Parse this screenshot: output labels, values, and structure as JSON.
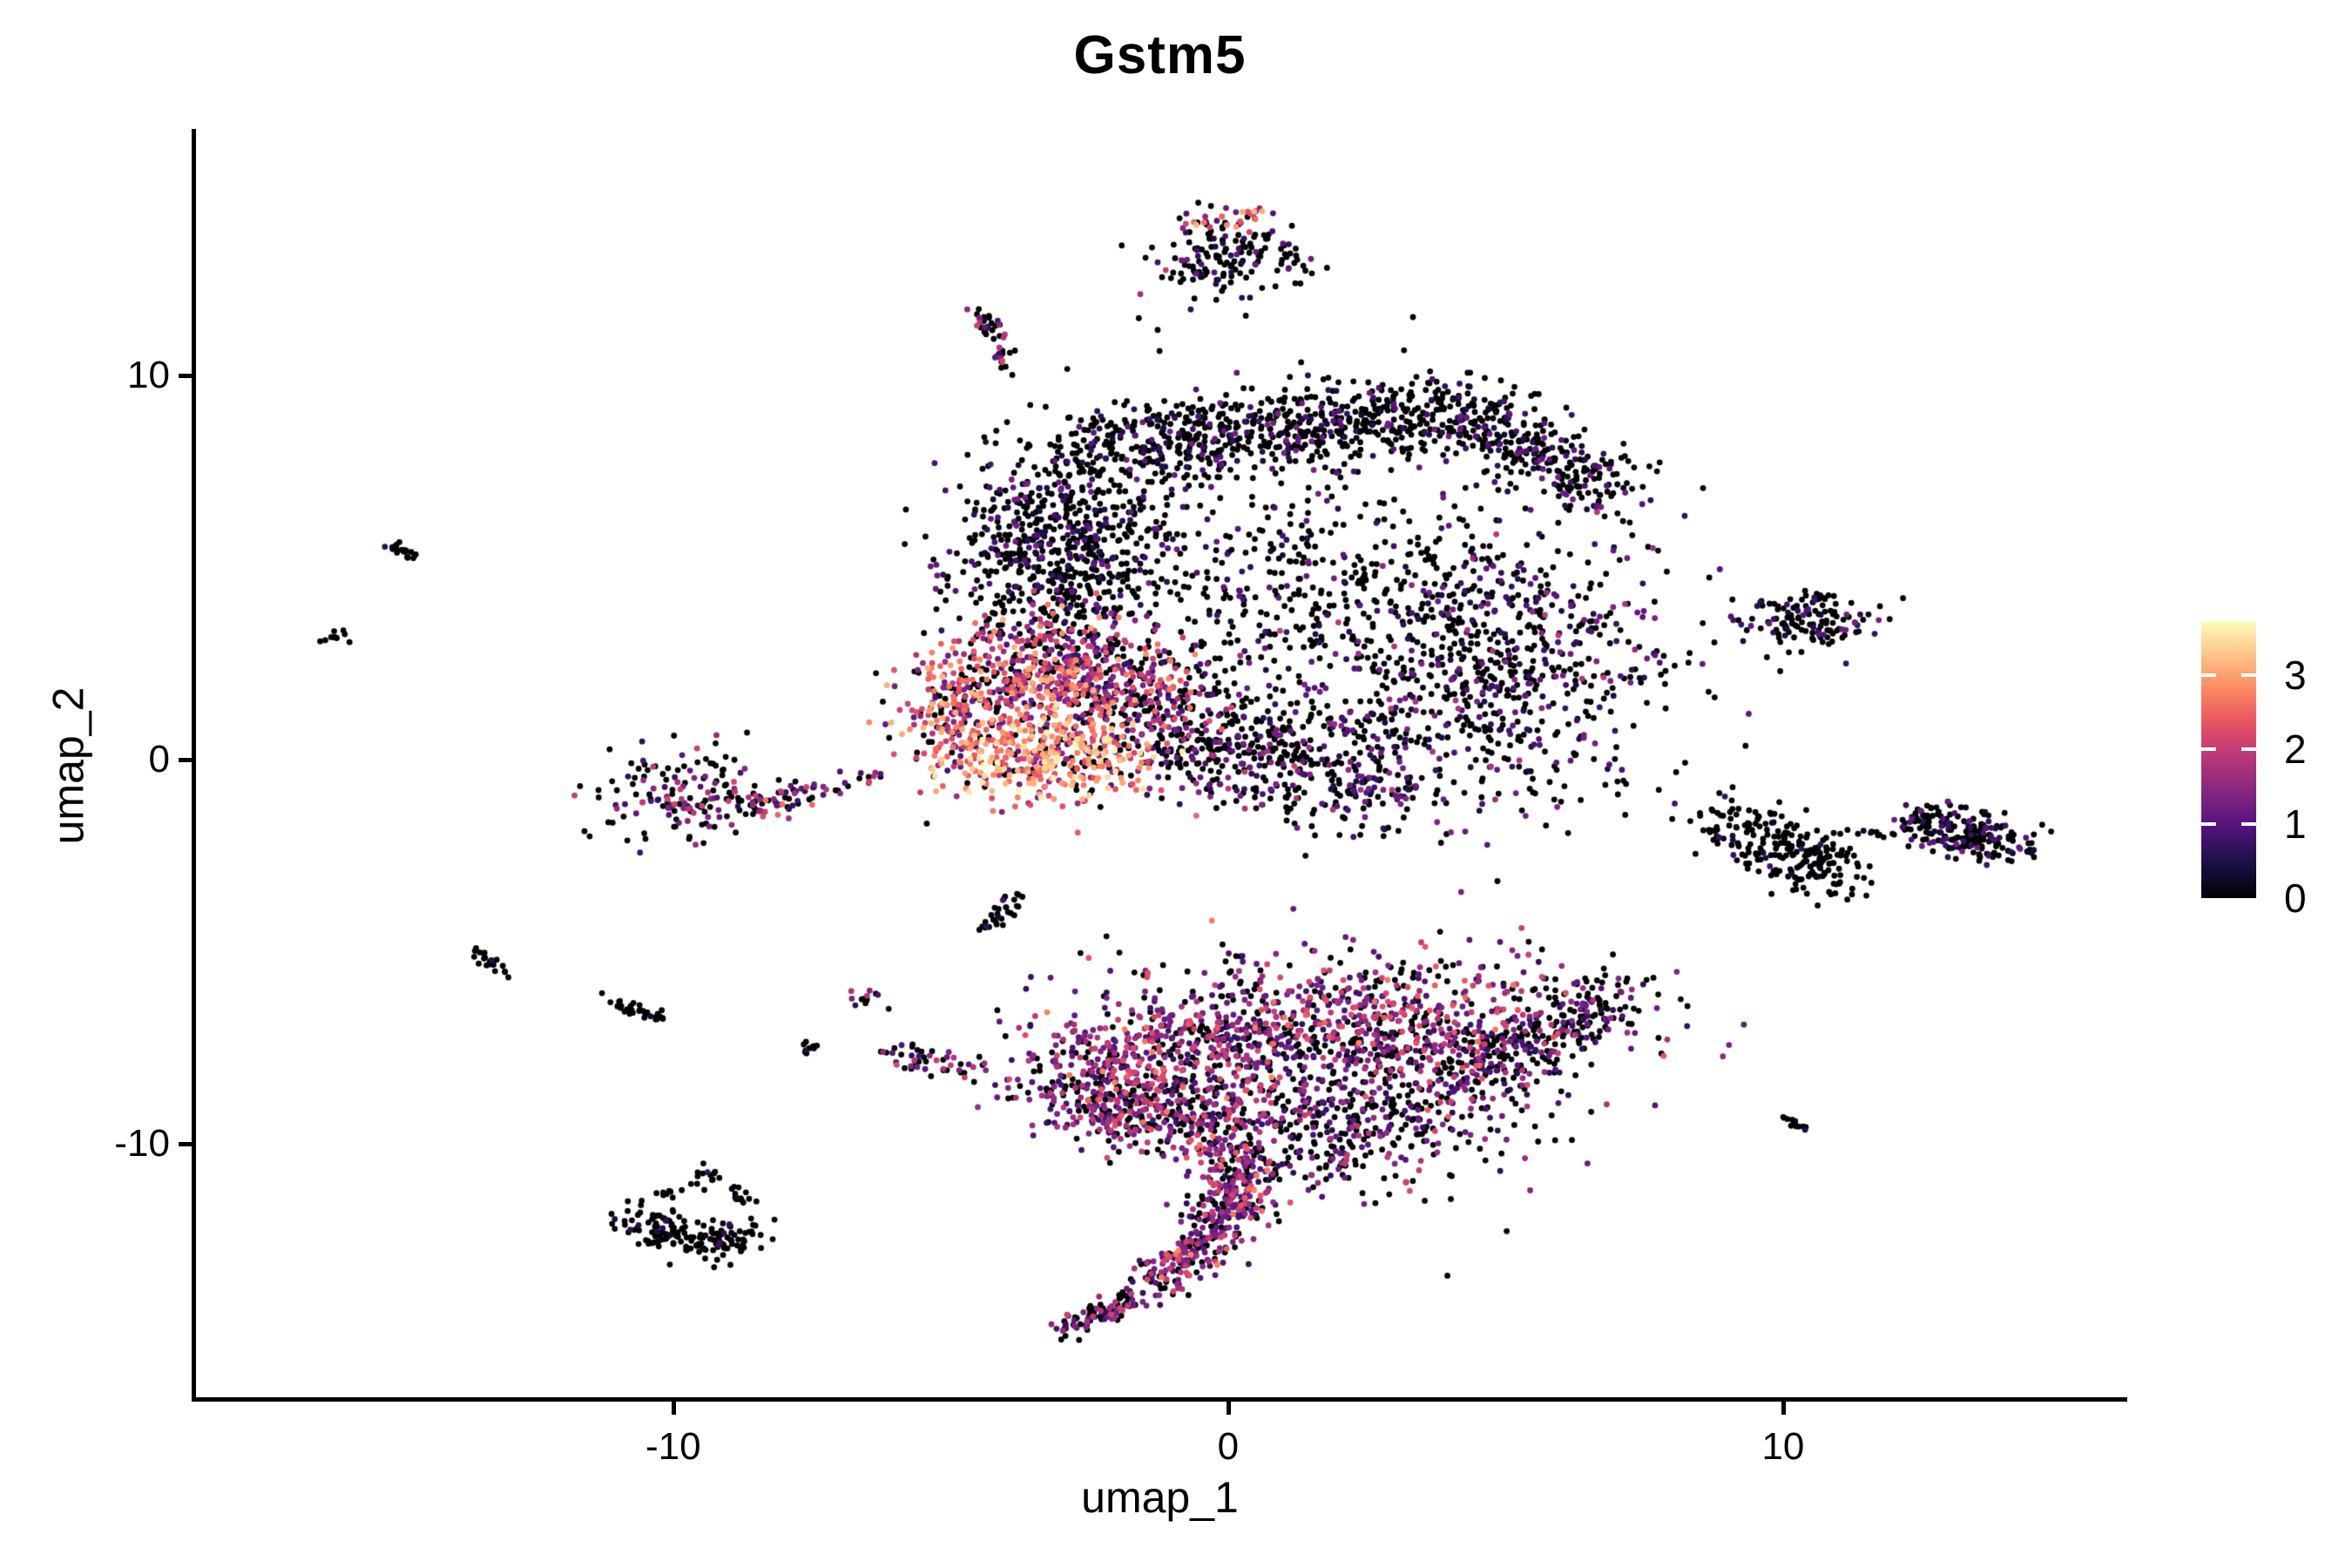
{
  "title": "Gstm5",
  "x_axis": {
    "label": "umap_1",
    "tick_labels": [
      "-10",
      "0",
      "10"
    ],
    "tick_values": [
      -10,
      0,
      10
    ]
  },
  "y_axis": {
    "label": "umap_2",
    "tick_labels": [
      "-10",
      "0",
      "10"
    ],
    "tick_values": [
      -10,
      0,
      10
    ]
  },
  "colorbar": {
    "tick_labels": [
      "0",
      "1",
      "2",
      "3"
    ],
    "tick_values": [
      0,
      1,
      2,
      3
    ],
    "min": 0,
    "max": 3.72,
    "palette": "magma",
    "gradient_stops": [
      "#000004",
      "#1c1044",
      "#4f127b",
      "#812581",
      "#b5367a",
      "#e55064",
      "#fb8761",
      "#fec287",
      "#fcfdbf"
    ]
  },
  "chart_data": {
    "type": "scatter",
    "title": "Gstm5",
    "xlabel": "umap_1",
    "ylabel": "umap_2",
    "xlim": [
      -18.63,
      16.17
    ],
    "ylim": [
      -16.62,
      16.37
    ],
    "grid": false,
    "legend_position": "right",
    "color_scale": {
      "palette": "magma",
      "domain": [
        0,
        3.72
      ]
    },
    "n_points_approx": 8900,
    "point_radius_px": 3.4,
    "profiles": {
      "black": [
        [
          0.92,
          0,
          0
        ],
        [
          0.08,
          0.2,
          0.8
        ]
      ],
      "dark": [
        [
          0.78,
          0,
          0
        ],
        [
          0.22,
          0.3,
          1.3
        ]
      ],
      "dark2": [
        [
          0.68,
          0,
          0
        ],
        [
          0.27,
          0.4,
          1.4
        ],
        [
          0.05,
          1.4,
          2.0
        ]
      ],
      "darkpurple": [
        [
          0.55,
          0,
          0
        ],
        [
          0.35,
          0.5,
          1.6
        ],
        [
          0.1,
          1.6,
          2.2
        ]
      ],
      "purplemix": [
        [
          0.33,
          0,
          0
        ],
        [
          0.47,
          0.6,
          1.8
        ],
        [
          0.16,
          1.8,
          2.4
        ],
        [
          0.04,
          2.4,
          2.8
        ]
      ],
      "warmmix": [
        [
          0.22,
          0,
          0
        ],
        [
          0.33,
          0.8,
          1.9
        ],
        [
          0.3,
          1.9,
          2.7
        ],
        [
          0.15,
          2.7,
          3.2
        ]
      ],
      "hot": [
        [
          0.1,
          0,
          0
        ],
        [
          0.2,
          1.2,
          2.2
        ],
        [
          0.45,
          2.2,
          3.1
        ],
        [
          0.25,
          3.1,
          3.72
        ]
      ]
    },
    "clusters": [
      {
        "name": "top-cluster-core",
        "type": "gauss",
        "cx": 0.05,
        "cy": 13.1,
        "sx": 0.6,
        "sy": 0.5,
        "n": 150,
        "profile": "dark"
      },
      {
        "name": "top-cluster-rim",
        "type": "line",
        "x1": -0.9,
        "y1": 13.9,
        "x2": 0.5,
        "y2": 14.2,
        "jitter": 0.18,
        "n": 30,
        "profile": "warmmix"
      },
      {
        "name": "top-sparse",
        "type": "gauss",
        "cx": -1.5,
        "cy": 12.0,
        "sx": 0.8,
        "sy": 0.6,
        "n": 8,
        "profile": "darkpurple"
      },
      {
        "name": "upper-streak",
        "type": "line",
        "x1": -4.55,
        "y1": 11.7,
        "x2": -3.85,
        "y2": 10.2,
        "jitter": 0.13,
        "n": 45,
        "profile": "darkpurple"
      },
      {
        "name": "main-left-dense",
        "type": "gauss",
        "cx": -3.1,
        "cy": 5.5,
        "sx": 0.95,
        "sy": 1.35,
        "n": 650,
        "profile": "dark"
      },
      {
        "name": "main-top-band",
        "type": "line",
        "x1": -2.6,
        "y1": 8.0,
        "x2": 4.3,
        "y2": 9.1,
        "jitter": 0.55,
        "n": 720,
        "profile": "dark"
      },
      {
        "name": "main-top-band2",
        "type": "line",
        "x1": 4.3,
        "y1": 8.9,
        "x2": 6.95,
        "y2": 7.0,
        "jitter": 0.5,
        "n": 300,
        "profile": "dark"
      },
      {
        "name": "main-right-lobe",
        "type": "gauss",
        "cx": 4.7,
        "cy": 2.6,
        "sx": 1.6,
        "sy": 2.0,
        "n": 820,
        "profile": "dark2"
      },
      {
        "name": "main-mid-sparse",
        "type": "gauss",
        "cx": 0.8,
        "cy": 4.3,
        "sx": 1.7,
        "sy": 1.6,
        "n": 300,
        "profile": "dark"
      },
      {
        "name": "main-fill",
        "type": "gauss",
        "cx": 1.5,
        "cy": 6.2,
        "sx": 2.5,
        "sy": 2.2,
        "n": 100,
        "profile": "dark"
      },
      {
        "name": "main-bottom-arc",
        "type": "line",
        "x1": -1.9,
        "y1": 0.8,
        "x2": 2.9,
        "y2": -0.6,
        "jitter": 0.75,
        "n": 500,
        "profile": "dark2"
      },
      {
        "name": "main-left-slope",
        "type": "line",
        "x1": -3.2,
        "y1": 3.2,
        "x2": -0.8,
        "y2": 1.0,
        "jitter": 0.65,
        "n": 320,
        "profile": "purplemix"
      },
      {
        "name": "hot-upper",
        "type": "gauss",
        "cx": -3.5,
        "cy": 2.0,
        "sx": 1.05,
        "sy": 0.75,
        "n": 430,
        "profile": "warmmix"
      },
      {
        "name": "hot-core",
        "type": "gauss",
        "cx": -3.3,
        "cy": 0.1,
        "sx": 0.95,
        "sy": 0.6,
        "n": 380,
        "profile": "hot"
      },
      {
        "name": "hot-left",
        "type": "gauss",
        "cx": -5.0,
        "cy": 0.9,
        "sx": 0.55,
        "sy": 0.7,
        "n": 130,
        "profile": "warmmix"
      },
      {
        "name": "ring-cluster",
        "type": "gauss",
        "cx": -9.6,
        "cy": -1.0,
        "sx": 0.8,
        "sy": 0.55,
        "n": 170,
        "profile": "darkpurple"
      },
      {
        "name": "ring-trail",
        "type": "line",
        "x1": -8.6,
        "y1": -1.25,
        "x2": -6.3,
        "y2": -0.35,
        "jitter": 0.16,
        "n": 55,
        "profile": "purplemix"
      },
      {
        "name": "far-left-dash",
        "type": "line",
        "x1": -15.05,
        "y1": 5.6,
        "x2": -14.55,
        "y2": 5.05,
        "jitter": 0.07,
        "n": 22,
        "profile": "black"
      },
      {
        "name": "far-left-speck",
        "type": "gauss",
        "cx": -16.05,
        "cy": 3.2,
        "sx": 0.14,
        "sy": 0.12,
        "n": 10,
        "profile": "black"
      },
      {
        "name": "left-dash",
        "type": "line",
        "x1": -13.6,
        "y1": -4.9,
        "x2": -13.05,
        "y2": -5.6,
        "jitter": 0.08,
        "n": 24,
        "profile": "black"
      },
      {
        "name": "mid-dash",
        "type": "line",
        "x1": -4.35,
        "y1": -4.45,
        "x2": -3.8,
        "y2": -3.5,
        "jitter": 0.09,
        "n": 30,
        "profile": "black"
      },
      {
        "name": "left-dash2",
        "type": "line",
        "x1": -11.15,
        "y1": -6.25,
        "x2": -10.2,
        "y2": -6.75,
        "jitter": 0.1,
        "n": 32,
        "profile": "black"
      },
      {
        "name": "speck-a",
        "type": "gauss",
        "cx": -6.6,
        "cy": -6.2,
        "sx": 0.15,
        "sy": 0.12,
        "n": 12,
        "profile": "darkpurple"
      },
      {
        "name": "speck-b",
        "type": "gauss",
        "cx": -7.6,
        "cy": -7.5,
        "sx": 0.14,
        "sy": 0.12,
        "n": 10,
        "profile": "black"
      },
      {
        "name": "speck-band",
        "type": "line",
        "x1": -6.1,
        "y1": -7.6,
        "x2": -4.5,
        "y2": -8.2,
        "jitter": 0.18,
        "n": 48,
        "profile": "darkpurple"
      },
      {
        "name": "fish-top",
        "type": "gauss",
        "cx": 2.4,
        "cy": -6.9,
        "sx": 2.3,
        "sy": 1.0,
        "n": 850,
        "profile": "purplemix"
      },
      {
        "name": "fish-nose-top",
        "type": "line",
        "x1": -3.25,
        "y1": -8.3,
        "x2": 0.5,
        "y2": -7.2,
        "jitter": 0.7,
        "n": 420,
        "profile": "purplemix"
      },
      {
        "name": "fish-nose-bottom",
        "type": "line",
        "x1": -2.9,
        "y1": -8.7,
        "x2": 0.4,
        "y2": -9.7,
        "jitter": 0.55,
        "n": 330,
        "profile": "purplemix"
      },
      {
        "name": "fish-belly",
        "type": "gauss",
        "cx": 1.9,
        "cy": -9.4,
        "sx": 1.7,
        "sy": 0.95,
        "n": 480,
        "profile": "darkpurple"
      },
      {
        "name": "fish-right-edge",
        "type": "line",
        "x1": 4.2,
        "y1": -8.1,
        "x2": 6.9,
        "y2": -6.4,
        "jitter": 0.5,
        "n": 260,
        "profile": "dark2"
      },
      {
        "name": "tail-upper",
        "type": "line",
        "x1": 0.4,
        "y1": -10.4,
        "x2": -0.2,
        "y2": -12.3,
        "jitter": 0.38,
        "n": 230,
        "profile": "purplemix"
      },
      {
        "name": "tail-lower",
        "type": "line",
        "x1": -0.2,
        "y1": -12.3,
        "x2": -1.4,
        "y2": -13.7,
        "jitter": 0.3,
        "n": 150,
        "profile": "purplemix"
      },
      {
        "name": "tail-streak",
        "type": "line",
        "x1": -1.6,
        "y1": -13.9,
        "x2": -3.0,
        "y2": -14.9,
        "jitter": 0.16,
        "n": 90,
        "profile": "darkpurple"
      },
      {
        "name": "bottomleft-crescent-a",
        "type": "line",
        "x1": -10.75,
        "y1": -11.9,
        "x2": -9.6,
        "y2": -12.45,
        "jitter": 0.28,
        "n": 90,
        "profile": "black"
      },
      {
        "name": "bottomleft-crescent-b",
        "type": "line",
        "x1": -9.6,
        "y1": -12.5,
        "x2": -8.55,
        "y2": -12.4,
        "jitter": 0.25,
        "n": 80,
        "profile": "black"
      },
      {
        "name": "bottomleft-speck-a",
        "type": "gauss",
        "cx": -9.35,
        "cy": -10.85,
        "sx": 0.18,
        "sy": 0.14,
        "n": 14,
        "profile": "black"
      },
      {
        "name": "bottomleft-speck-b",
        "type": "gauss",
        "cx": -10.05,
        "cy": -11.35,
        "sx": 0.12,
        "sy": 0.1,
        "n": 8,
        "profile": "black"
      },
      {
        "name": "bottomleft-arc",
        "type": "line",
        "x1": -9.05,
        "y1": -11.15,
        "x2": -8.6,
        "y2": -11.55,
        "jitter": 0.08,
        "n": 14,
        "profile": "black"
      },
      {
        "name": "right-top-cluster",
        "type": "gauss",
        "cx": 10.4,
        "cy": 3.6,
        "sx": 0.6,
        "sy": 0.42,
        "n": 140,
        "profile": "dark"
      },
      {
        "name": "right-mid-left",
        "type": "line",
        "x1": 8.95,
        "y1": -1.55,
        "x2": 11.05,
        "y2": -3.05,
        "jitter": 0.4,
        "n": 240,
        "profile": "black"
      },
      {
        "name": "right-dotted-trail",
        "type": "line",
        "x1": 11.3,
        "y1": -1.95,
        "x2": 12.05,
        "y2": -1.9,
        "jitter": 0.05,
        "n": 8,
        "profile": "black"
      },
      {
        "name": "right-mid-right",
        "type": "line",
        "x1": 12.3,
        "y1": -1.55,
        "x2": 14.35,
        "y2": -2.25,
        "jitter": 0.33,
        "n": 210,
        "profile": "dark"
      },
      {
        "name": "right-tiny-dash",
        "type": "line",
        "x1": 10.0,
        "y1": -9.3,
        "x2": 10.4,
        "y2": -9.6,
        "jitter": 0.06,
        "n": 12,
        "profile": "black"
      }
    ]
  }
}
